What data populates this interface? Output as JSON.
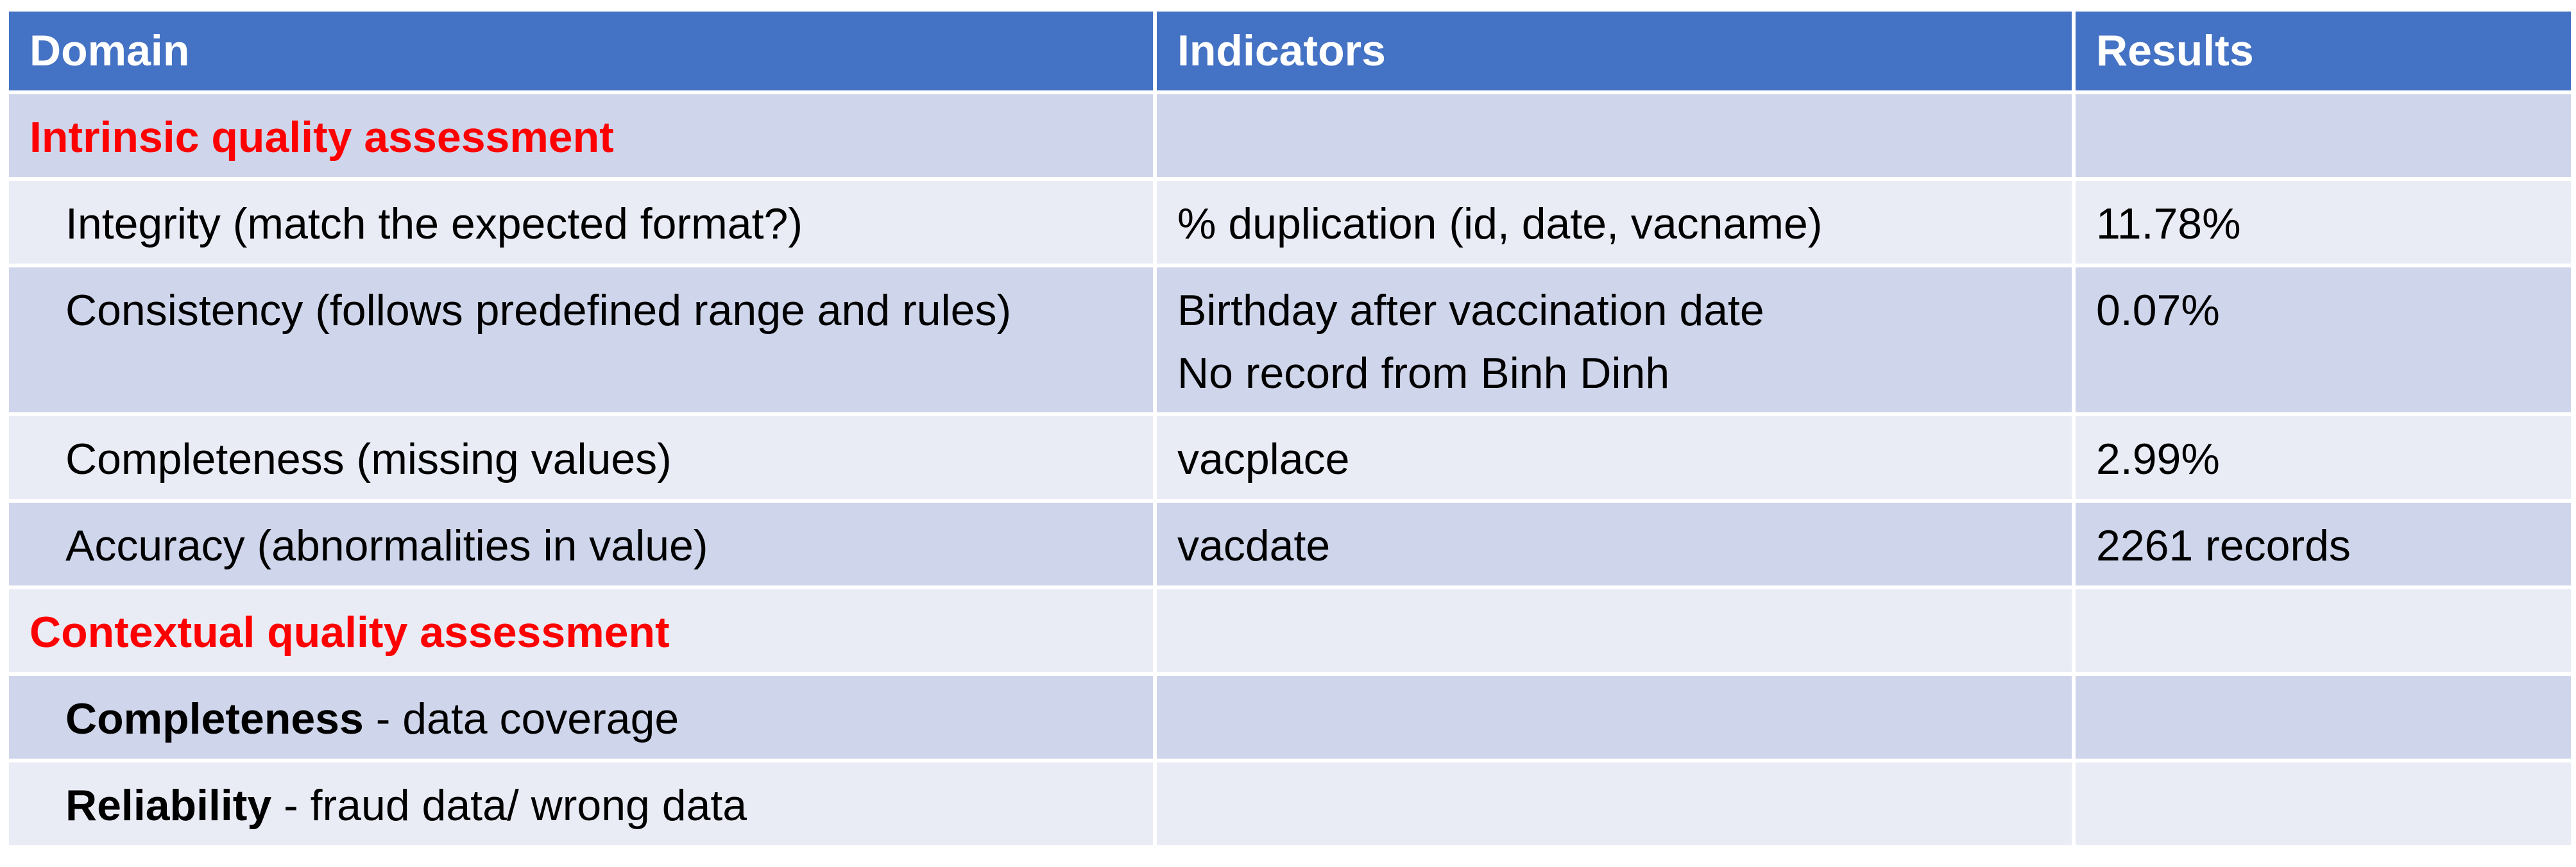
{
  "table": {
    "headers": {
      "domain": "Domain",
      "indicators": "Indicators",
      "results": "Results"
    },
    "section_intrinsic": "Intrinsic quality assessment",
    "integrity": {
      "domain": "Integrity (match the expected format?)",
      "indicator": "% duplication (id, date, vacname)",
      "result": "11.78%"
    },
    "consistency": {
      "domain": "Consistency (follows predefined range and rules)",
      "indicator_line1": "Birthday after vaccination date",
      "indicator_line2": "No record from Binh Dinh",
      "result": "0.07%"
    },
    "completeness": {
      "domain": "Completeness (missing values)",
      "indicator": "vacplace",
      "result": "2.99%"
    },
    "accuracy": {
      "domain": "Accuracy (abnormalities in value)",
      "indicator": "vacdate",
      "result": "2261 records"
    },
    "section_contextual": "Contextual quality assessment",
    "contextual_completeness": {
      "term": "Completeness",
      "rest": " - data coverage"
    },
    "reliability": {
      "term": "Reliability",
      "rest": " - fraud data/ wrong data"
    }
  },
  "colors": {
    "header_bg": "#4472c4",
    "band_dark": "#cfd5ea",
    "band_light": "#e9ebf5",
    "section_text": "#ff0000"
  }
}
